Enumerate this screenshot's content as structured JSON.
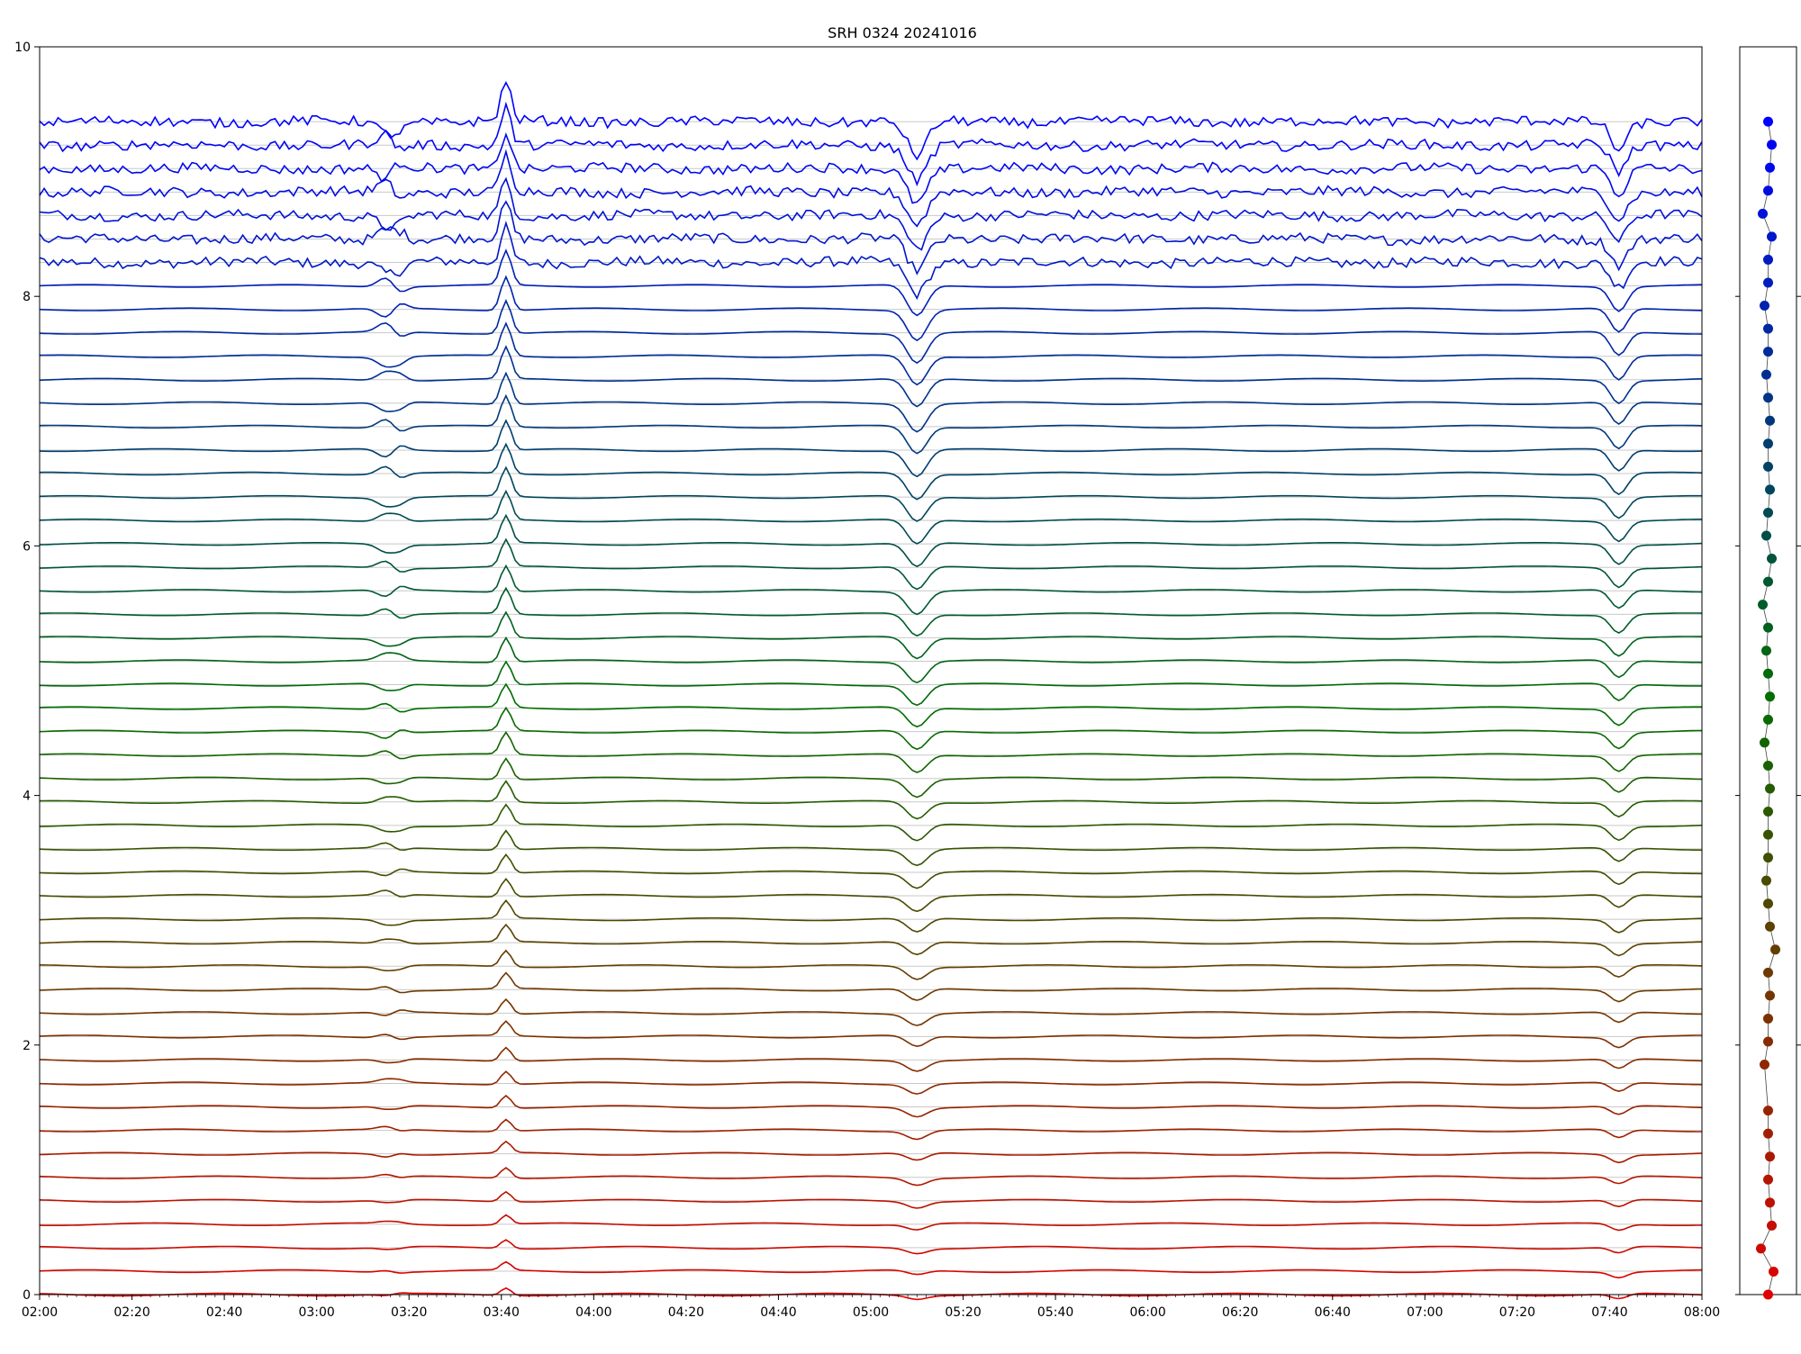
{
  "chart_data": [
    {
      "type": "line",
      "title": "SRH 0324 20241016",
      "xlabel": "",
      "ylabel": "",
      "xlim": [
        "02:00",
        "08:00"
      ],
      "ylim": [
        0,
        10
      ],
      "x_ticks": [
        "02:00",
        "02:20",
        "02:40",
        "03:00",
        "03:20",
        "03:40",
        "04:00",
        "04:20",
        "04:40",
        "05:00",
        "05:20",
        "05:40",
        "06:00",
        "06:20",
        "06:40",
        "07:00",
        "07:20",
        "07:40",
        "08:00"
      ],
      "y_ticks": [
        "0",
        "2",
        "4",
        "6",
        "8"
      ],
      "y_top_label": "10",
      "grid": "horizontal",
      "channel_count": 51,
      "color_gradient": [
        "#e00000",
        "#0000ff"
      ],
      "note_common_events_hhmm": [
        "03:15",
        "03:18",
        "03:41",
        "05:10",
        "07:42"
      ]
    },
    {
      "type": "line",
      "title": "",
      "xlabel": "",
      "ylabel": "",
      "marker_count": 51,
      "marker_values": [
        0.0,
        0.2,
        0.4,
        0.6,
        0.8,
        1.0,
        1.2,
        1.4,
        1.6,
        2.0,
        2.2,
        2.4,
        2.6,
        2.8,
        3.0,
        3.2,
        3.4,
        3.6,
        3.8,
        4.0,
        4.2,
        4.4,
        4.6,
        4.8,
        5.0,
        5.2,
        5.4,
        5.6,
        5.8,
        6.0,
        6.2,
        6.4,
        6.6,
        6.8,
        7.0,
        7.2,
        7.4,
        7.6,
        7.8,
        8.0,
        8.2,
        8.4,
        8.6,
        8.8,
        9.0,
        9.2,
        9.4,
        9.6,
        9.8,
        10.0,
        10.2
      ],
      "marker_offsets": [
        0.0,
        0.3,
        -0.4,
        0.2,
        0.1,
        0.0,
        0.1,
        0.0,
        0.0,
        -0.2,
        0.0,
        0.0,
        0.1,
        0.0,
        0.4,
        0.1,
        0.0,
        -0.1,
        0.0,
        0.0,
        0.0,
        0.1,
        0.0,
        -0.2,
        0.0,
        0.1,
        0.0,
        -0.1,
        0.0,
        -0.3,
        0.0,
        0.2,
        -0.1,
        0.0,
        0.1,
        0.0,
        0.0,
        0.1,
        0.0,
        -0.1,
        0.0,
        0.0,
        -0.2,
        0.0,
        0.0,
        0.2,
        -0.3,
        0.0,
        0.1,
        0.2,
        0.0
      ]
    }
  ]
}
